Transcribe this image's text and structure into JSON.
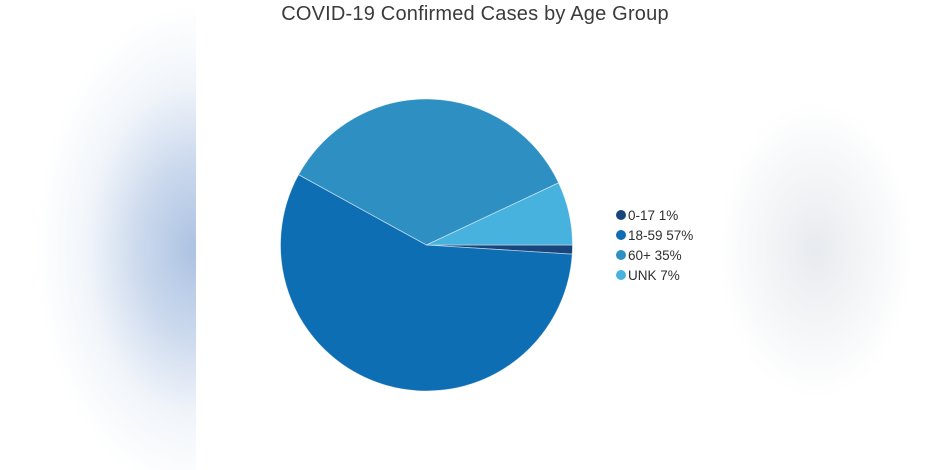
{
  "page": {
    "background_color": "#ffffff",
    "left_edge_glow_color": "#abc2e2",
    "right_edge_glow_color": "#eef0f3",
    "title_color": "#3b3b3b",
    "legend_text_color": "#2f2f2f"
  },
  "chart_data": {
    "type": "pie",
    "title": "COVID-19 Confirmed Cases by Age Group",
    "categories": [
      "0-17",
      "18-59",
      "60+",
      "UNK"
    ],
    "values": [
      1,
      57,
      35,
      7
    ],
    "unit": "%",
    "colors": [
      "#17457c",
      "#0e6eb4",
      "#2e90c2",
      "#47b2dd"
    ],
    "legend_labels": [
      "0-17 1%",
      "18-59 57%",
      "60+ 35%",
      "UNK 7%"
    ],
    "legend_position": "right",
    "start_angle_deg": 90,
    "direction": "clockwise",
    "grid": false
  }
}
